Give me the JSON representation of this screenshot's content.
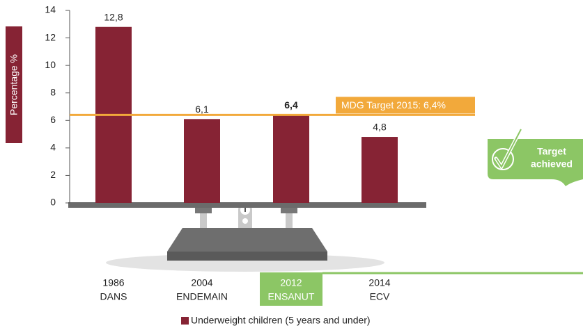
{
  "chart_data": {
    "type": "bar",
    "y_label": "Percentage %",
    "categories": [
      [
        "1986",
        "DANS"
      ],
      [
        "2004",
        "ENDEMAIN"
      ],
      [
        "2012",
        "ENSANUT"
      ],
      [
        "2014",
        "ECV"
      ]
    ],
    "series": [
      {
        "name": "Underweight children (5 years and under)",
        "color": "#862334",
        "values": [
          12.8,
          6.1,
          6.4,
          4.8
        ],
        "value_labels": [
          "12,8",
          "6,1",
          "6,4",
          "4,8"
        ]
      }
    ],
    "highlight": 2,
    "ylim": [
      0,
      14
    ],
    "yticks": [
      0,
      2,
      4,
      6,
      8,
      10,
      12,
      14
    ],
    "target_line": {
      "value": 6.4,
      "label": "MDG Target 2015: 6,4%",
      "color": "#f2a93b"
    },
    "badge": [
      "Target",
      "achieved"
    ]
  }
}
